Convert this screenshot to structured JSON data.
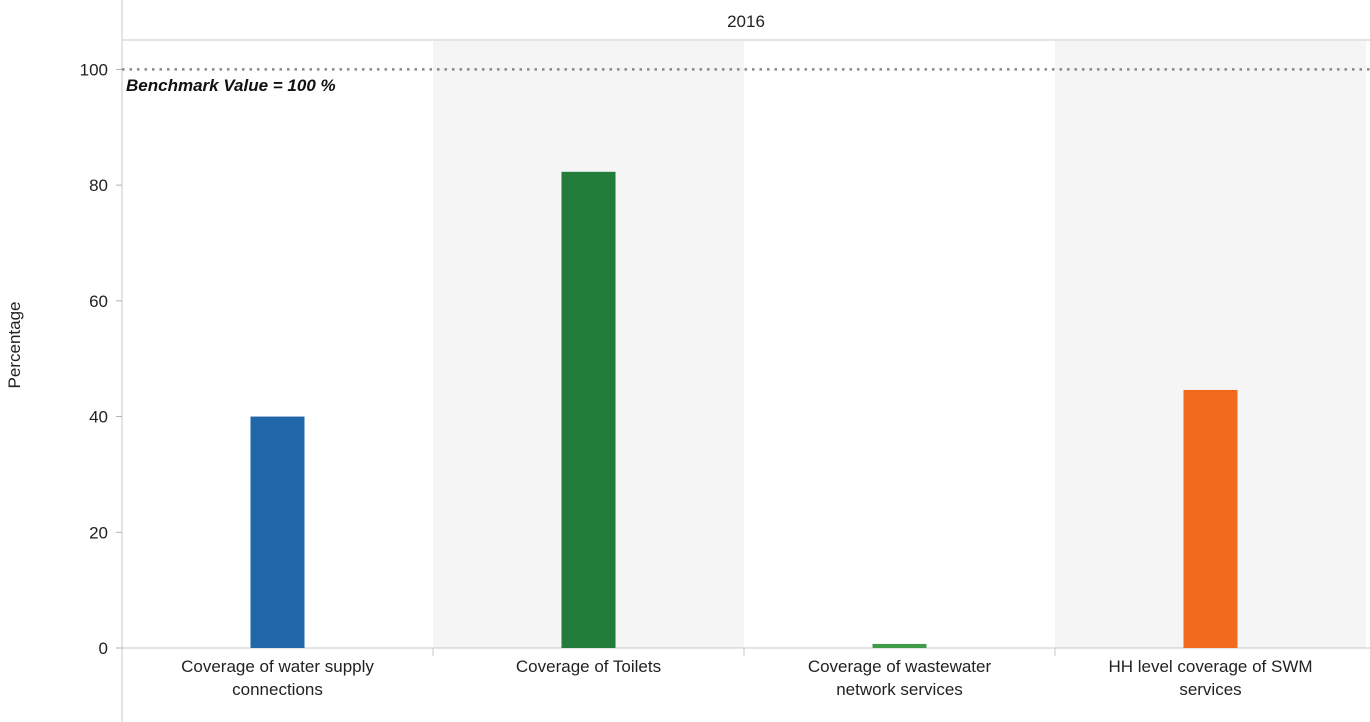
{
  "chart_data": {
    "type": "bar",
    "column_header": "2016",
    "ylabel": "Percentage",
    "xlabel": "",
    "ylim": [
      0,
      105
    ],
    "yticks": [
      0,
      20,
      40,
      60,
      80,
      100
    ],
    "categories": [
      [
        "Coverage of water supply",
        "connections"
      ],
      [
        "Coverage of Toilets"
      ],
      [
        "Coverage of wastewater",
        "network services"
      ],
      [
        "HH level coverage of SWM",
        "services"
      ]
    ],
    "values": [
      40,
      82.3,
      0.7,
      44.6
    ],
    "colors": [
      "#1f67a8",
      "#227c3a",
      "#3f9b48",
      "#f26b1d"
    ],
    "band_color": "#f5f5f5",
    "grid": false,
    "reference_line": {
      "value": 100,
      "label": "Benchmark Value = 100 %",
      "style": "dotted"
    }
  }
}
